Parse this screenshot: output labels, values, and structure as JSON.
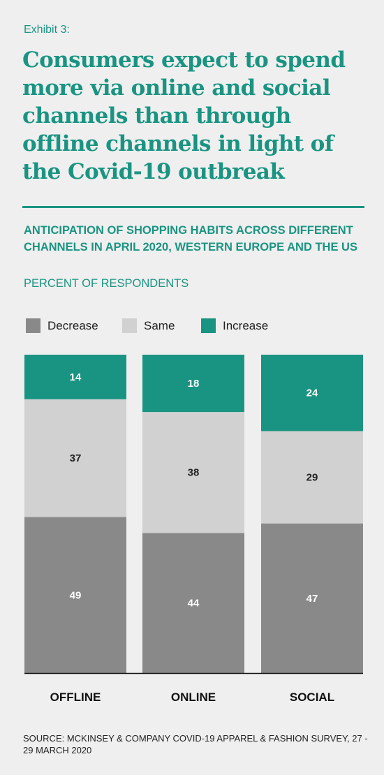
{
  "exhibit_label": "Exhibit 3:",
  "headline": "Consumers expect to spend more via online and social channels than through offline channels in light of the Covid-19 outbreak",
  "subtitle": "ANTICIPATION OF SHOPPING HABITS ACROSS DIFFERENT CHANNELS IN APRIL 2020, WESTERN EUROPE AND THE US",
  "unit_label": "PERCENT OF RESPONDENTS",
  "source": "SOURCE: MCKINSEY & COMPANY COVID-19 APPAREL & FASHION SURVEY, 27 - 29 MARCH 2020",
  "colors": {
    "decrease": "#898989",
    "same": "#d1d1d1",
    "increase": "#1a9482",
    "accent": "#1a9482"
  },
  "chart_data": {
    "type": "bar",
    "stacked": true,
    "categories": [
      "OFFLINE",
      "ONLINE",
      "SOCIAL"
    ],
    "series": [
      {
        "name": "Decrease",
        "values": [
          49,
          44,
          47
        ]
      },
      {
        "name": "Same",
        "values": [
          37,
          38,
          29
        ]
      },
      {
        "name": "Increase",
        "values": [
          14,
          18,
          24
        ]
      }
    ],
    "ylim": [
      0,
      100
    ],
    "legend_position": "top-left",
    "grid": false
  }
}
